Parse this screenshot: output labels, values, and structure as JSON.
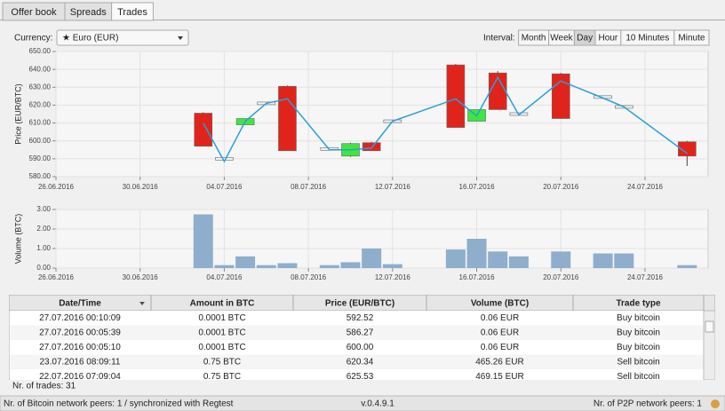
{
  "tabs": [
    "Offer book",
    "Spreads",
    "Trades"
  ],
  "active_tab": 2,
  "currency_label": "Currency:",
  "currency": "★ Euro (EUR)",
  "interval_label": "Interval:",
  "intervals": [
    "Month",
    "Week",
    "Day",
    "Hour",
    "10 Minutes",
    "Minute"
  ],
  "active_interval": 2,
  "chart_data": [
    {
      "type": "candlestick",
      "y_label": "Price (EUR/BTC)",
      "x": [
        "2016-07-03",
        "2016-07-04",
        "2016-07-05",
        "2016-07-06",
        "2016-07-07",
        "2016-07-09",
        "2016-07-10",
        "2016-07-11",
        "2016-07-12",
        "2016-07-15",
        "2016-07-16",
        "2016-07-17",
        "2016-07-18",
        "2016-07-20",
        "2016-07-22",
        "2016-07-23",
        "2016-07-26"
      ],
      "open": [
        615.5,
        590,
        609,
        621,
        630.5,
        595.5,
        591.5,
        599,
        611,
        642.5,
        611,
        638,
        615,
        637.5,
        624.5,
        619,
        599.5
      ],
      "high": [
        616,
        590.5,
        612.5,
        621.5,
        631,
        596,
        599,
        599.5,
        611.5,
        643,
        617.5,
        639,
        615.5,
        638,
        625,
        619.5,
        600
      ],
      "low": [
        597,
        589.5,
        609,
        620.5,
        594.5,
        595,
        591,
        594.5,
        610.5,
        607.5,
        611,
        617.5,
        614.5,
        612.5,
        624,
        618.5,
        586
      ],
      "close": [
        597,
        590,
        612.5,
        621,
        594.5,
        595.5,
        598.5,
        594.5,
        611,
        607.5,
        617.5,
        617.5,
        615,
        612.5,
        624.5,
        619,
        591.5
      ],
      "average": [
        610,
        588.5,
        611,
        621,
        623.5,
        595,
        595,
        596,
        611,
        623.5,
        614,
        635.5,
        614.5,
        633.5,
        624,
        619,
        593
      ],
      "up_color": "#3ee63e",
      "down_color": "#e0241c",
      "flat_color": "#f4f4f4",
      "line_color": "#2a9fd6",
      "xlim": [
        "2016-06-26",
        "2016-07-27"
      ],
      "xticks": [
        {
          "value": "2016-06-26",
          "label": "26.06.2016"
        },
        {
          "value": "2016-06-30",
          "label": "30.06.2016"
        },
        {
          "value": "2016-07-04",
          "label": "04.07.2016"
        },
        {
          "value": "2016-07-08",
          "label": "08.07.2016"
        },
        {
          "value": "2016-07-12",
          "label": "12.07.2016"
        },
        {
          "value": "2016-07-16",
          "label": "16.07.2016"
        },
        {
          "value": "2016-07-20",
          "label": "20.07.2016"
        },
        {
          "value": "2016-07-24",
          "label": "24.07.2016"
        }
      ],
      "ylim": [
        580,
        650
      ],
      "yticks": [
        {
          "value": 580,
          "label": "580.00"
        },
        {
          "value": 590,
          "label": "590.00"
        },
        {
          "value": 600,
          "label": "600.00"
        },
        {
          "value": 610,
          "label": "610.00"
        },
        {
          "value": 620,
          "label": "620.00"
        },
        {
          "value": 630,
          "label": "630.00"
        },
        {
          "value": 640,
          "label": "640.00"
        },
        {
          "value": 650,
          "label": "650.00"
        }
      ],
      "grid": true
    },
    {
      "type": "bar",
      "y_label": "Volume (BTC)",
      "x": [
        "2016-07-03",
        "2016-07-04",
        "2016-07-05",
        "2016-07-06",
        "2016-07-07",
        "2016-07-09",
        "2016-07-10",
        "2016-07-11",
        "2016-07-12",
        "2016-07-15",
        "2016-07-16",
        "2016-07-17",
        "2016-07-18",
        "2016-07-20",
        "2016-07-22",
        "2016-07-23",
        "2016-07-26"
      ],
      "values": [
        2.75,
        0.15,
        0.6,
        0.15,
        0.25,
        0.15,
        0.3,
        1.0,
        0.2,
        0.95,
        1.5,
        0.85,
        0.6,
        0.85,
        0.75,
        0.75,
        0.15
      ],
      "color": "#8eaecb",
      "xlim": [
        "2016-06-26",
        "2016-07-27"
      ],
      "xticks": [
        {
          "value": "2016-06-26",
          "label": "26.06.2016"
        },
        {
          "value": "2016-06-30",
          "label": "30.06.2016"
        },
        {
          "value": "2016-07-04",
          "label": "04.07.2016"
        },
        {
          "value": "2016-07-08",
          "label": "08.07.2016"
        },
        {
          "value": "2016-07-12",
          "label": "12.07.2016"
        },
        {
          "value": "2016-07-16",
          "label": "16.07.2016"
        },
        {
          "value": "2016-07-20",
          "label": "20.07.2016"
        },
        {
          "value": "2016-07-24",
          "label": "24.07.2016"
        }
      ],
      "ylim": [
        0,
        3
      ],
      "yticks": [
        {
          "value": 0,
          "label": "0.00"
        },
        {
          "value": 1,
          "label": "1.00"
        },
        {
          "value": 2,
          "label": "2.00"
        },
        {
          "value": 3,
          "label": "3.00"
        }
      ],
      "grid": true
    }
  ],
  "table": {
    "columns": [
      "Date/Time",
      "Amount in BTC",
      "Price (EUR/BTC)",
      "Volume (BTC)",
      "Trade type"
    ],
    "rows": [
      [
        "27.07.2016 00:10:09",
        "0.0001 BTC",
        "592.52",
        "0.06 EUR",
        "Buy bitcoin"
      ],
      [
        "27.07.2016 00:05:39",
        "0.0001 BTC",
        "586.27",
        "0.06 EUR",
        "Buy bitcoin"
      ],
      [
        "27.07.2016 00:05:10",
        "0.0001 BTC",
        "600.00",
        "0.06 EUR",
        "Buy bitcoin"
      ],
      [
        "23.07.2016 08:09:11",
        "0.75 BTC",
        "620.34",
        "465.26 EUR",
        "Sell bitcoin"
      ],
      [
        "22.07.2016 07:09:04",
        "0.75 BTC",
        "625.53",
        "469.15 EUR",
        "Sell bitcoin"
      ]
    ]
  },
  "trade_count": "Nr. of trades: 31",
  "status": {
    "left": "Nr. of Bitcoin network peers: 1 / synchronized with Regtest",
    "version": "v.0.4.9.1",
    "right": "Nr. of P2P network peers: 1"
  }
}
